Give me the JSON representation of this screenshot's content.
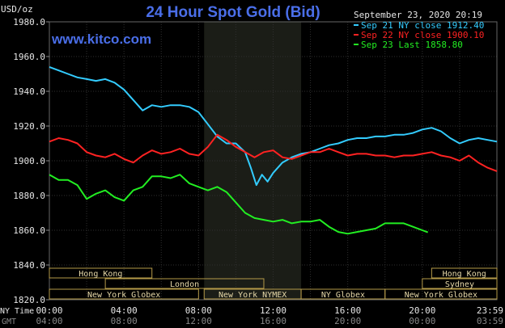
{
  "header": {
    "title": "24 Hour Spot Gold (Bid)",
    "unit": "USD/oz",
    "timestamp": "September 23, 2020 20:19",
    "watermark": "www.kitco.com"
  },
  "legend": [
    {
      "label": "Sep 21 NY close 1912.40",
      "color": "#33ccff"
    },
    {
      "label": "Sep 22 NY close 1900.10",
      "color": "#ff2222"
    },
    {
      "label": "Sep 23 Last 1858.80",
      "color": "#22ee22"
    }
  ],
  "axis_labels": {
    "ny_time": "NY Time",
    "gmt": "GMT",
    "ny_ticks": [
      "00:00",
      "04:00",
      "08:00",
      "12:00",
      "16:00",
      "20:00",
      "23:59"
    ],
    "gmt_ticks": [
      "04:00",
      "08:00",
      "12:00",
      "16:00",
      "20:00",
      "00:00",
      "03:59"
    ]
  },
  "markets": [
    {
      "label": "Hong Kong",
      "start": 0,
      "end": 5.5,
      "row": 0
    },
    {
      "label": "Hong Kong",
      "start": 20.5,
      "end": 24,
      "row": 0
    },
    {
      "label": "London",
      "start": 3,
      "end": 11.5,
      "row": 1
    },
    {
      "label": "Sydney",
      "start": 20,
      "end": 24,
      "row": 1
    },
    {
      "label": "New York Globex",
      "start": 0,
      "end": 8,
      "row": 2
    },
    {
      "label": "New York NYMEX",
      "start": 8.3,
      "end": 13.5,
      "row": 2
    },
    {
      "label": "NY Globex",
      "start": 13.5,
      "end": 18,
      "row": 2
    },
    {
      "label": "New York Globex",
      "start": 18,
      "end": 24,
      "row": 2
    }
  ],
  "chart_data": {
    "type": "line",
    "title": "24 Hour Spot Gold (Bid)",
    "ylabel": "USD/oz",
    "ylim": [
      1820,
      1980
    ],
    "xlim": [
      0,
      24
    ],
    "yticks": [
      1820,
      1840,
      1860,
      1880,
      1900,
      1920,
      1940,
      1960,
      1980
    ],
    "shaded_hours": [
      8.3,
      13.5
    ],
    "grid": true,
    "series": [
      {
        "name": "Sep 21 NY close 1912.40",
        "color": "#33ccff",
        "x": [
          0,
          0.5,
          1,
          1.5,
          2,
          2.5,
          3,
          3.5,
          4,
          4.5,
          5,
          5.5,
          6,
          6.5,
          7,
          7.5,
          8,
          8.5,
          9,
          9.5,
          10,
          10.5,
          10.8,
          11.1,
          11.4,
          11.7,
          12,
          12.5,
          13,
          13.5,
          14,
          14.5,
          15,
          15.5,
          16,
          16.5,
          17,
          17.5,
          18,
          18.5,
          19,
          19.5,
          20,
          20.5,
          21,
          21.5,
          22,
          22.5,
          23,
          23.5,
          24
        ],
        "y": [
          1954,
          1952,
          1950,
          1948,
          1947,
          1946,
          1947,
          1945,
          1941,
          1935,
          1929,
          1932,
          1931,
          1932,
          1932,
          1931,
          1928,
          1921,
          1914,
          1910,
          1910,
          1905,
          1896,
          1886,
          1892,
          1888,
          1893,
          1899,
          1902,
          1904,
          1905,
          1907,
          1909,
          1910,
          1912,
          1913,
          1913,
          1914,
          1914,
          1915,
          1915,
          1916,
          1918,
          1919,
          1917,
          1913,
          1910,
          1912,
          1913,
          1912,
          1911
        ]
      },
      {
        "name": "Sep 22 NY close 1900.10",
        "color": "#ff2222",
        "x": [
          0,
          0.5,
          1,
          1.5,
          2,
          2.5,
          3,
          3.5,
          4,
          4.5,
          5,
          5.5,
          6,
          6.5,
          7,
          7.5,
          8,
          8.5,
          9,
          9.5,
          10,
          10.5,
          11,
          11.5,
          12,
          12.5,
          13,
          13.5,
          14,
          14.5,
          15,
          15.5,
          16,
          16.5,
          17,
          17.5,
          18,
          18.5,
          19,
          19.5,
          20,
          20.5,
          21,
          21.5,
          22,
          22.5,
          23,
          23.5,
          24
        ],
        "y": [
          1911,
          1913,
          1912,
          1910,
          1905,
          1903,
          1902,
          1904,
          1901,
          1899,
          1903,
          1906,
          1904,
          1905,
          1907,
          1904,
          1903,
          1908,
          1915,
          1912,
          1908,
          1905,
          1902,
          1905,
          1906,
          1902,
          1901,
          1903,
          1905,
          1905,
          1907,
          1905,
          1903,
          1904,
          1904,
          1903,
          1903,
          1902,
          1903,
          1903,
          1904,
          1905,
          1903,
          1902,
          1900,
          1903,
          1899,
          1896,
          1894
        ]
      },
      {
        "name": "Sep 23 Last 1858.80",
        "color": "#22ee22",
        "x": [
          0,
          0.5,
          1,
          1.5,
          2,
          2.5,
          3,
          3.5,
          4,
          4.5,
          5,
          5.5,
          6,
          6.5,
          7,
          7.5,
          8,
          8.5,
          9,
          9.5,
          10,
          10.5,
          11,
          11.5,
          12,
          12.5,
          13,
          13.5,
          14,
          14.5,
          15,
          15.5,
          16,
          16.5,
          17,
          17.5,
          18,
          18.5,
          19,
          19.5,
          20,
          20.3
        ],
        "y": [
          1892,
          1889,
          1889,
          1886,
          1878,
          1881,
          1883,
          1879,
          1877,
          1883,
          1885,
          1891,
          1891,
          1890,
          1892,
          1887,
          1885,
          1883,
          1885,
          1882,
          1876,
          1870,
          1867,
          1866,
          1865,
          1866,
          1864,
          1865,
          1865,
          1866,
          1862,
          1859,
          1858,
          1859,
          1860,
          1861,
          1864,
          1864,
          1864,
          1862,
          1860,
          1858.8
        ]
      }
    ]
  }
}
